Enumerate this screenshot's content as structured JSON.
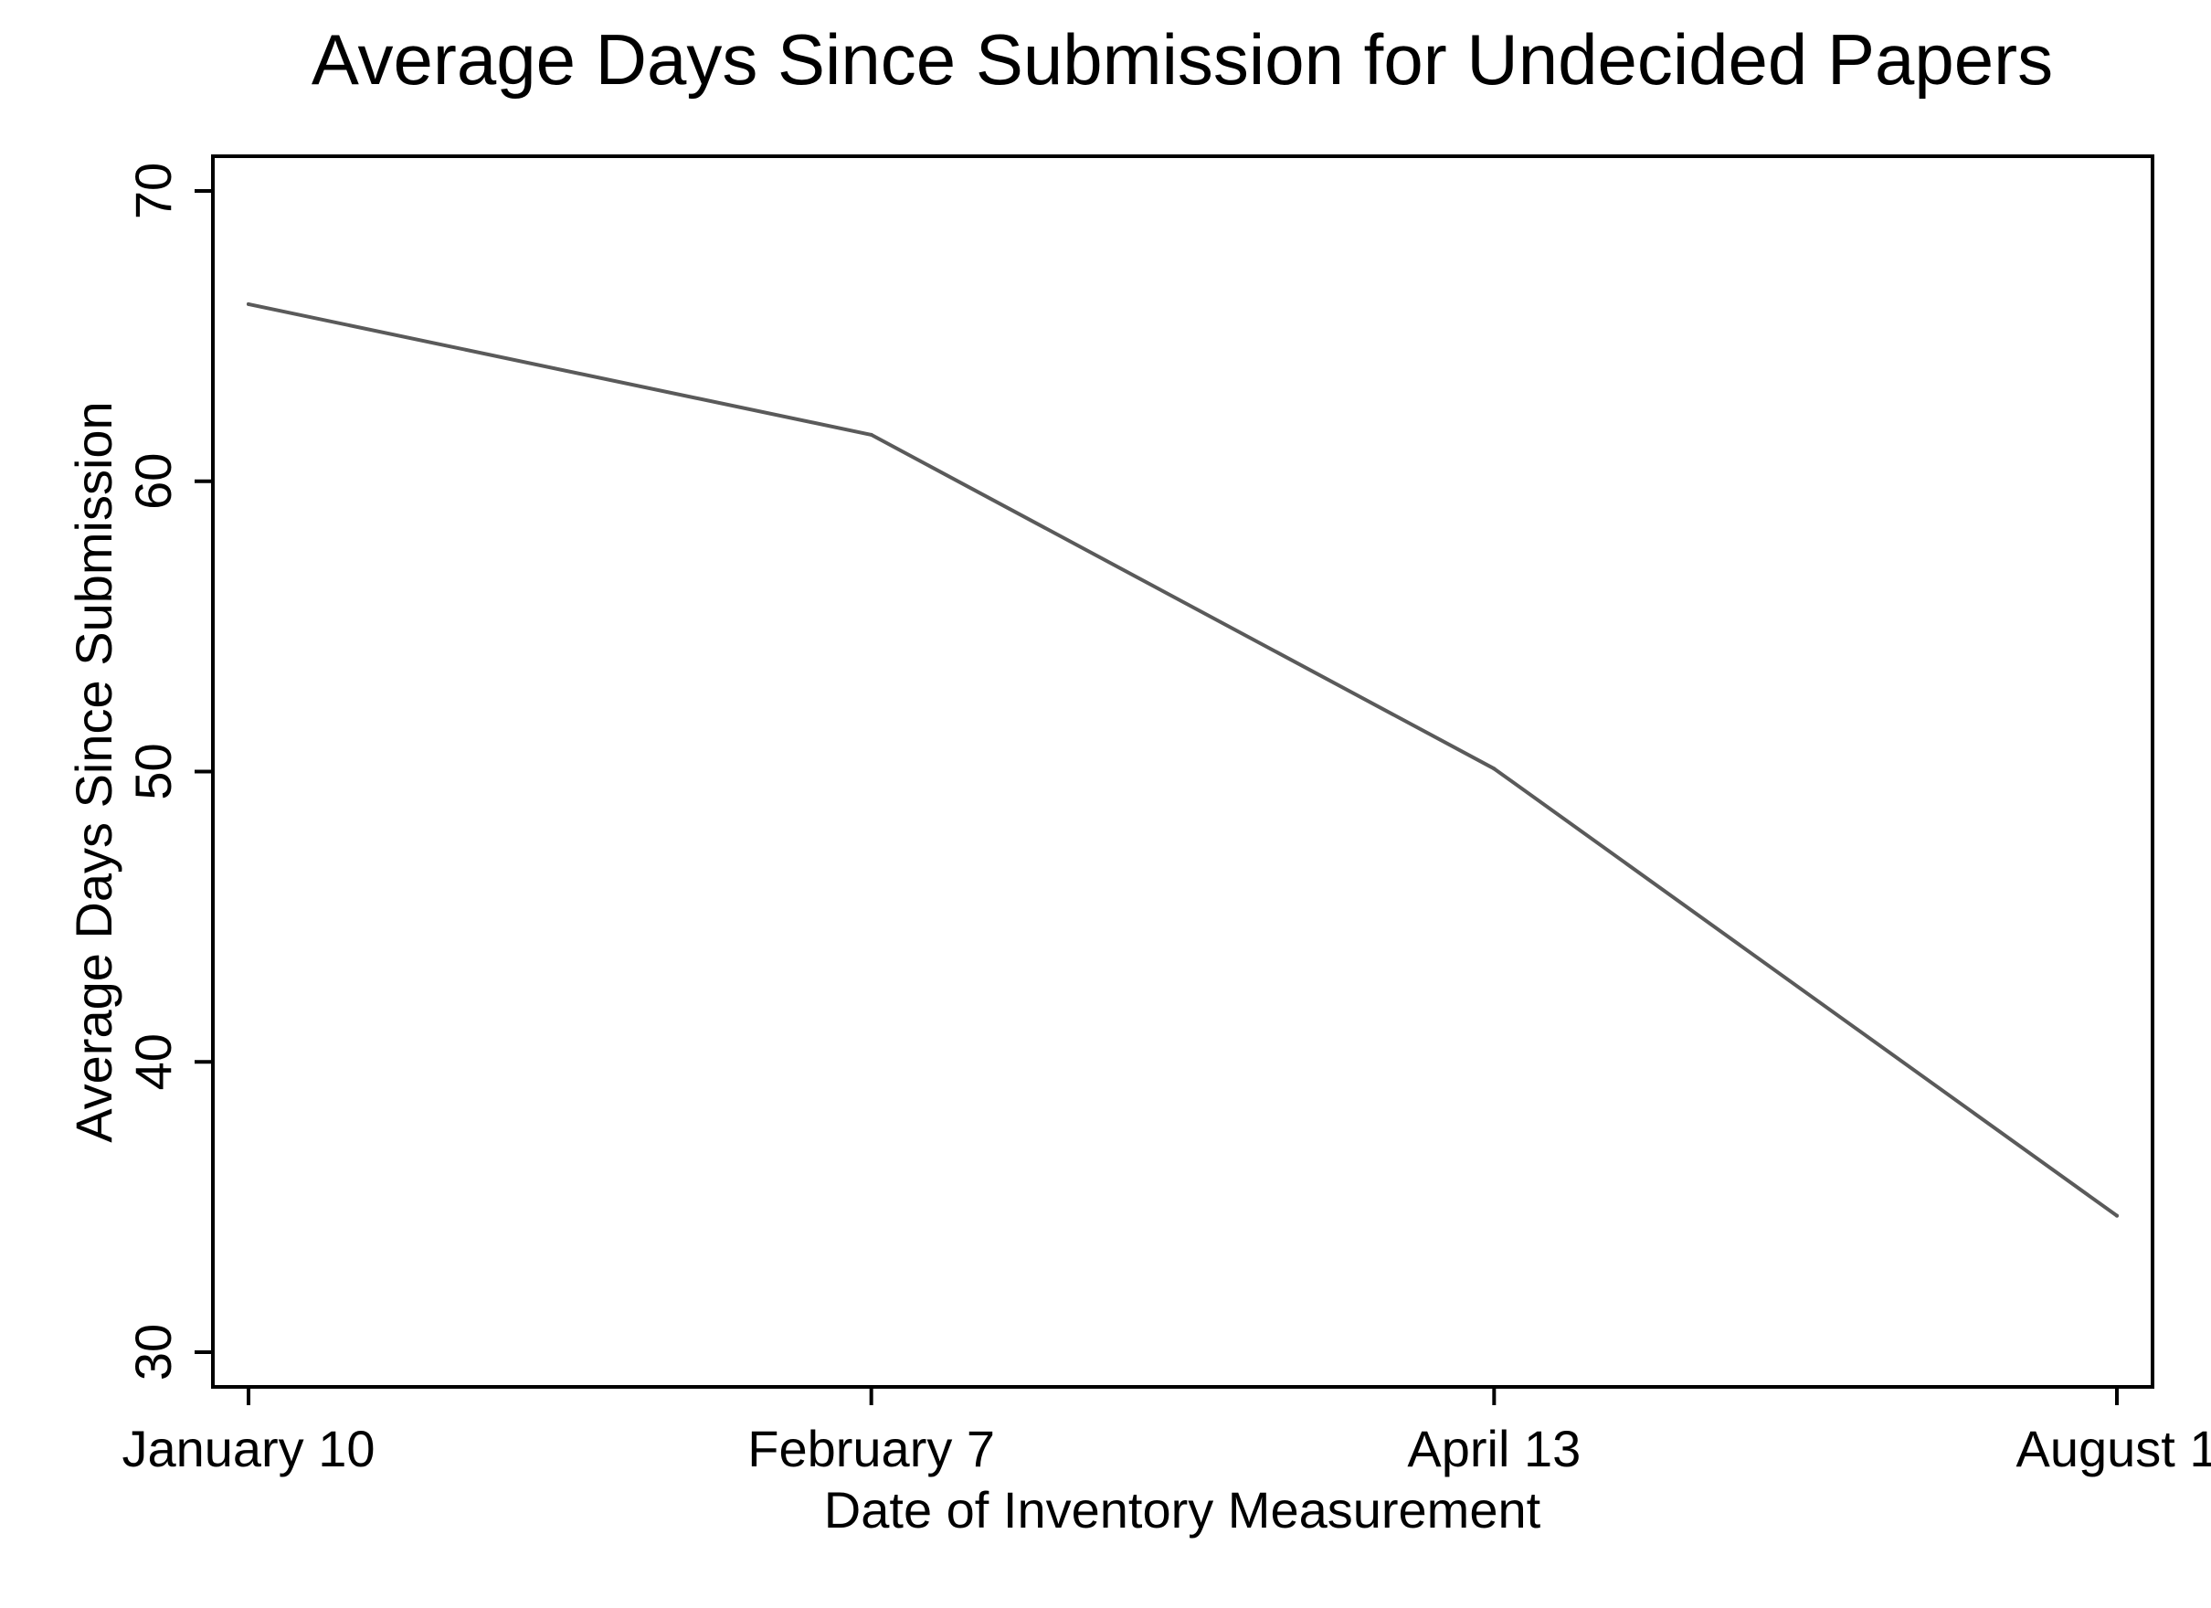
{
  "chart_data": {
    "type": "line",
    "title": "Average Days Since Submission for Undecided Papers",
    "xlabel": "Date of Inventory Measurement",
    "ylabel": "Average Days Since Submission",
    "x": [
      "January 10",
      "February 7",
      "April 13",
      "August 1"
    ],
    "x_tick_labels": [
      "January 10",
      "February 7",
      "April 13",
      "August 1"
    ],
    "series": [
      {
        "values": [
          66.1,
          61.6,
          50.1,
          34.7
        ]
      }
    ],
    "ylim": [
      30,
      70
    ],
    "y_ticks": [
      30,
      40,
      50,
      60,
      70
    ],
    "y_tick_labels": [
      "30",
      "40",
      "50",
      "60",
      "70"
    ],
    "grid": false,
    "legend": "none",
    "colors": {
      "line": "#5a5a5a",
      "axis": "#000000",
      "background": "#ffffff"
    }
  }
}
